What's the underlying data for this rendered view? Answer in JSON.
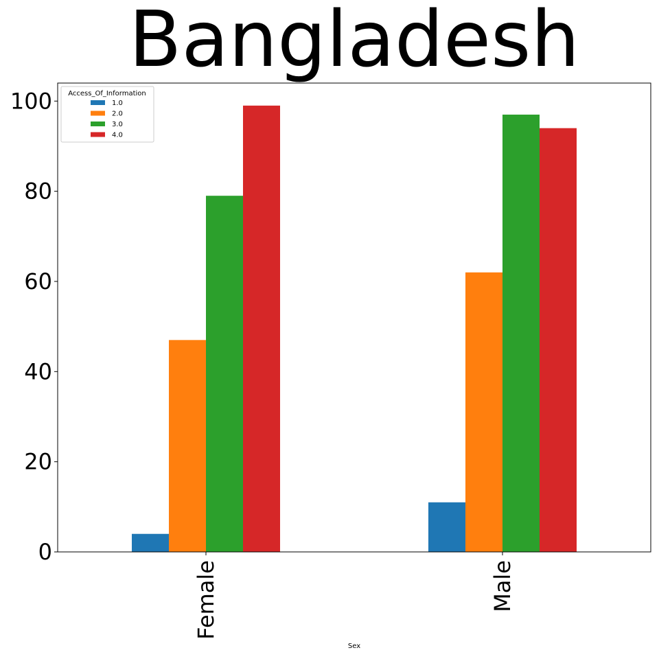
{
  "chart_data": {
    "type": "bar",
    "title": "Bangladesh",
    "xlabel": "Sex",
    "ylabel": "",
    "categories": [
      "Female",
      "Male"
    ],
    "ylim": [
      0,
      104
    ],
    "yticks": [
      0,
      20,
      40,
      60,
      80,
      100
    ],
    "legend": {
      "title": "Access_Of_Information",
      "placement": "top-left"
    },
    "series": [
      {
        "name": "1.0",
        "color": "#1f77b4",
        "values": [
          4,
          11
        ]
      },
      {
        "name": "2.0",
        "color": "#ff7f0e",
        "values": [
          47,
          62
        ]
      },
      {
        "name": "3.0",
        "color": "#2ca02c",
        "values": [
          79,
          97
        ]
      },
      {
        "name": "4.0",
        "color": "#d62728",
        "values": [
          99,
          94
        ]
      }
    ],
    "grid": false
  }
}
